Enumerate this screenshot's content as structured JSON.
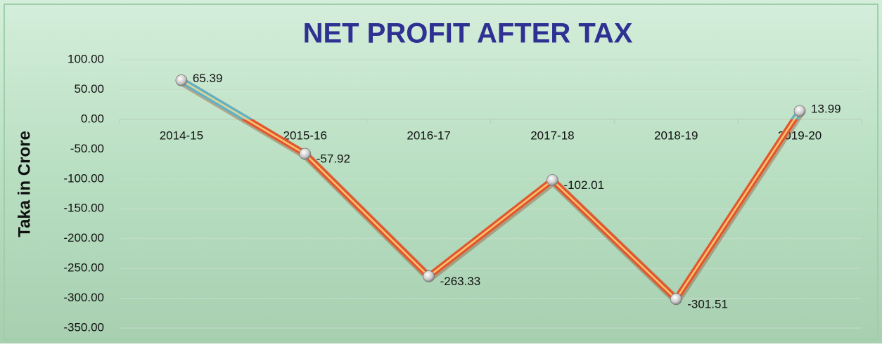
{
  "chart_data": {
    "type": "line",
    "title": "NET PROFIT AFTER TAX",
    "y_label": "Taka in Crore",
    "categories": [
      "2014-15",
      "2015-16",
      "2016-17",
      "2017-18",
      "2018-19",
      "2019-20"
    ],
    "series": [
      {
        "name": "Net Profit After Tax",
        "color": "#e2572b",
        "positive_color": "#5fb3c8",
        "values": [
          65.39,
          -57.92,
          -263.33,
          -102.01,
          -301.51,
          13.99
        ]
      }
    ],
    "ylim": [
      -350,
      100
    ],
    "yticks": [
      {
        "value": 100,
        "label": "100.00"
      },
      {
        "value": 50,
        "label": "50.00"
      },
      {
        "value": 0,
        "label": "0.00"
      },
      {
        "value": -50,
        "label": "-50.00"
      },
      {
        "value": -100,
        "label": "-100.00"
      },
      {
        "value": -150,
        "label": "-150.00"
      },
      {
        "value": -200,
        "label": "-200.00"
      },
      {
        "value": -250,
        "label": "-250.00"
      },
      {
        "value": -300,
        "label": "-300.00"
      },
      {
        "value": -350,
        "label": "-350.00"
      }
    ],
    "grid": true
  }
}
